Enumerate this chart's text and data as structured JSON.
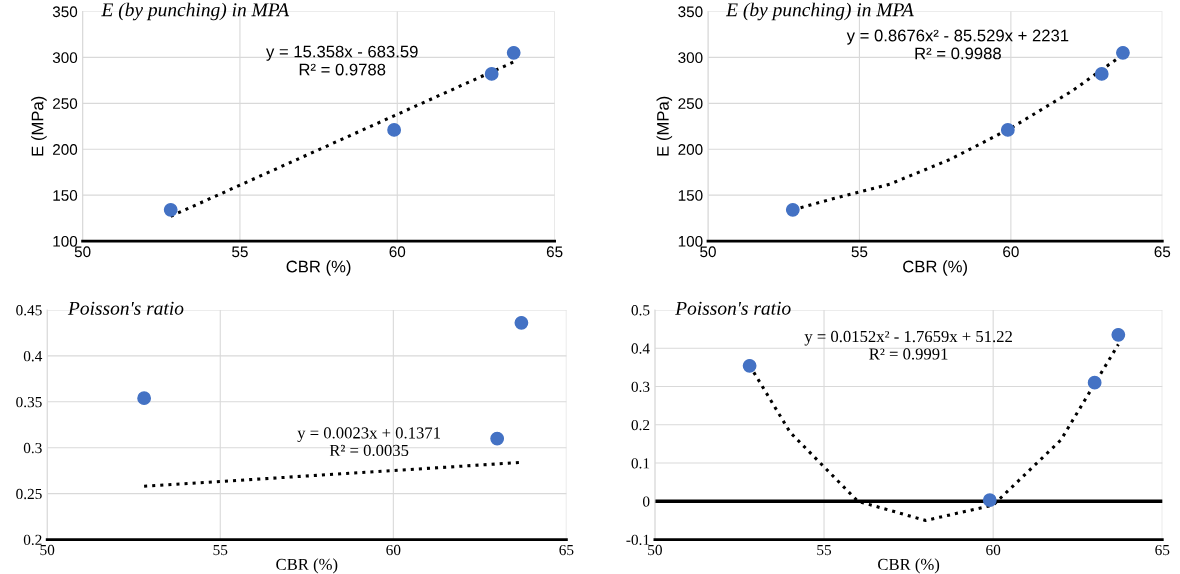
{
  "chart_data": [
    {
      "type": "scatter",
      "title": "E (by punching) in MPA",
      "xlabel": "CBR (%)",
      "ylabel": "E (MPa)",
      "xlim": [
        50,
        65
      ],
      "xticks": [
        50,
        55,
        60,
        65
      ],
      "ylim": [
        100,
        350
      ],
      "yticks": [
        100,
        150,
        200,
        250,
        300,
        350
      ],
      "grid": true,
      "annotations": [
        "y = 15.358x - 683.59",
        "R² = 0.9788"
      ],
      "series": [
        {
          "color": "#4472c4",
          "marker": "circle",
          "x": [
            52.8,
            59.9,
            63.0,
            63.7
          ],
          "values": [
            134,
            221,
            282,
            305
          ]
        },
        {
          "type": "line",
          "color": "#000000",
          "marker": "none",
          "line_style": "dotted",
          "x": [
            52.8,
            63.7
          ],
          "values": [
            127,
            295
          ]
        }
      ]
    },
    {
      "type": "scatter",
      "title": "E (by punching) in MPA",
      "xlabel": "CBR (%)",
      "ylabel": "E (MPa)",
      "xlim": [
        50,
        65
      ],
      "xticks": [
        50,
        55,
        60,
        65
      ],
      "ylim": [
        100,
        350
      ],
      "yticks": [
        100,
        150,
        200,
        250,
        300,
        350
      ],
      "grid": true,
      "annotations": [
        "y = 0.8676x² - 85.529x + 2231",
        "R² = 0.9988"
      ],
      "series": [
        {
          "color": "#4472c4",
          "marker": "circle",
          "x": [
            52.8,
            59.9,
            63.0,
            63.7
          ],
          "values": [
            134,
            221,
            282,
            305
          ]
        },
        {
          "type": "line",
          "color": "#000000",
          "marker": "none",
          "line_style": "dotted",
          "x": [
            52.8,
            54,
            56,
            58,
            60,
            62,
            63.7
          ],
          "values": [
            134,
            145,
            162,
            189,
            223,
            263,
            303
          ]
        }
      ]
    },
    {
      "type": "scatter",
      "title": "Poisson's ratio",
      "xlabel": "CBR (%)",
      "xlim": [
        50,
        65
      ],
      "xticks": [
        50,
        55,
        60,
        65
      ],
      "ylim": [
        0.2,
        0.45
      ],
      "yticks": [
        0.2,
        0.25,
        0.3,
        0.35,
        0.4,
        0.45
      ],
      "grid": true,
      "annotations": [
        "y = 0.0023x + 0.1371",
        "R² = 0.0035"
      ],
      "series": [
        {
          "color": "#4472c4",
          "marker": "circle",
          "x": [
            52.8,
            63.0,
            63.7
          ],
          "values": [
            0.354,
            0.31,
            0.436
          ]
        },
        {
          "type": "line",
          "color": "#000000",
          "marker": "none",
          "line_style": "dotted",
          "x": [
            52.8,
            63.7
          ],
          "values": [
            0.258,
            0.284
          ]
        }
      ]
    },
    {
      "type": "scatter",
      "title": "Poisson's ratio",
      "xlabel": "CBR (%)",
      "xlim": [
        50,
        65
      ],
      "xticks": [
        50,
        55,
        60,
        65
      ],
      "ylim": [
        -0.1,
        0.5
      ],
      "yticks": [
        -0.1,
        0,
        0.1,
        0.2,
        0.3,
        0.4,
        0.5
      ],
      "grid": true,
      "annotations": [
        "y = 0.0152x² - 1.7659x + 51.22",
        "R² = 0.9991"
      ],
      "ref_lines": [
        {
          "axis": "y",
          "value": 0,
          "color": "#000000"
        }
      ],
      "series": [
        {
          "color": "#4472c4",
          "marker": "circle",
          "x": [
            52.8,
            59.9,
            63.0,
            63.7
          ],
          "values": [
            0.354,
            0.003,
            0.31,
            0.435
          ]
        },
        {
          "type": "line",
          "color": "#000000",
          "marker": "none",
          "line_style": "dotted",
          "x": [
            52.8,
            54,
            56,
            58,
            60,
            62,
            63.7
          ],
          "values": [
            0.355,
            0.18,
            0.0,
            -0.05,
            -0.01,
            0.16,
            0.41
          ]
        }
      ]
    }
  ]
}
